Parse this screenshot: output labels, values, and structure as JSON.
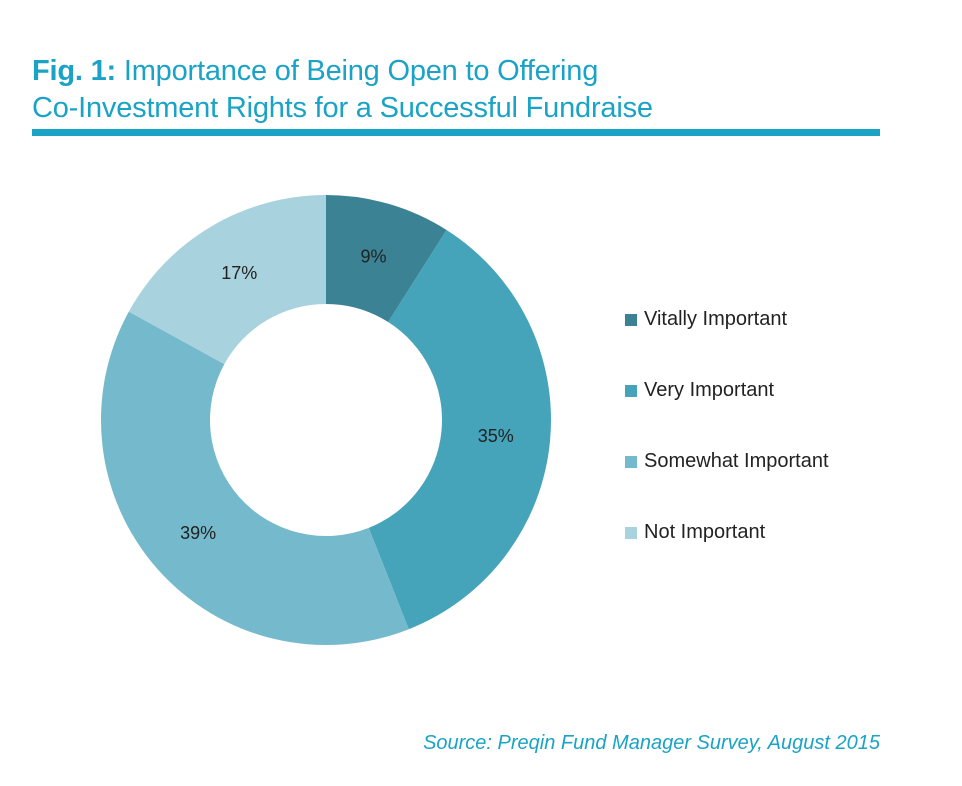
{
  "header": {
    "fig_label": "Fig. 1:",
    "title_line1": "Importance of Being Open to Offering",
    "title_line2": "Co-Investment Rights for a Successful Fundraise"
  },
  "chart_data": {
    "type": "pie",
    "variant": "donut",
    "title": "Fig. 1: Importance of Being Open to Offering Co-Investment Rights for a Successful Fundraise",
    "categories": [
      "Vitally Important",
      "Very Important",
      "Somewhat Important",
      "Not Important"
    ],
    "values": [
      9,
      35,
      39,
      17
    ],
    "labels": [
      "9%",
      "35%",
      "39%",
      "17%"
    ],
    "unit": "%",
    "colors": [
      "#3a8294",
      "#45a3ba",
      "#74b9cc",
      "#a8d2de"
    ],
    "legend_position": "right"
  },
  "footer": {
    "source": "Source: Preqin Fund Manager Survey, August 2015"
  }
}
